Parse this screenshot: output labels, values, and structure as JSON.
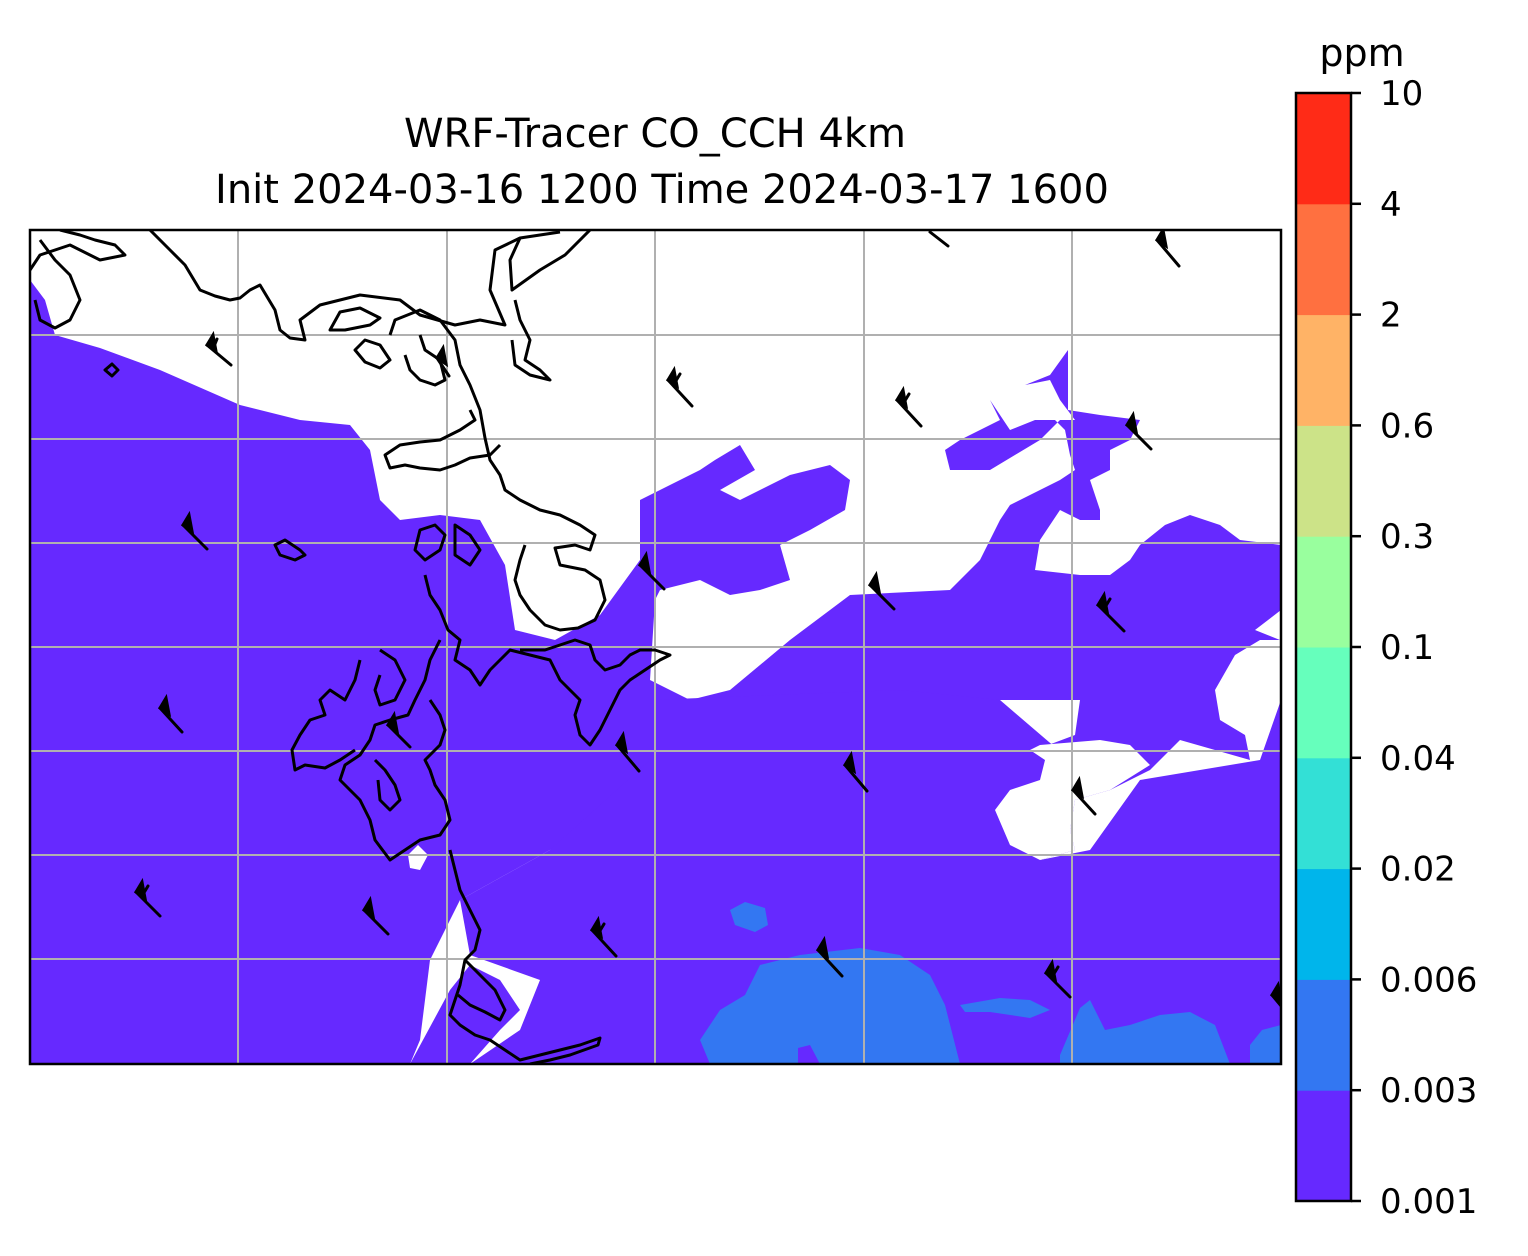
{
  "title": {
    "line1": "WRF-Tracer CO_CCH 4km",
    "line2": "Init 2024-03-16 1200 Time 2024-03-17 1600"
  },
  "colorbar": {
    "unit": "ppm",
    "levels": [
      "0.001",
      "0.003",
      "0.006",
      "0.02",
      "0.04",
      "0.1",
      "0.3",
      "0.6",
      "2",
      "4",
      "10"
    ],
    "colors": [
      "#6629ff",
      "#3377f2",
      "#00b5eb",
      "#33e0d6",
      "#66ffbc",
      "#99ff9e",
      "#cce388",
      "#ffb366",
      "#ff7040",
      "#ff2b17"
    ]
  },
  "map": {
    "background_color": "#ffffff",
    "base_fill_color": "#6629ff",
    "secondary_fill_color": "#3377f2",
    "coastline_color": "#000000",
    "gridline_color": "#b0b0b0"
  }
}
